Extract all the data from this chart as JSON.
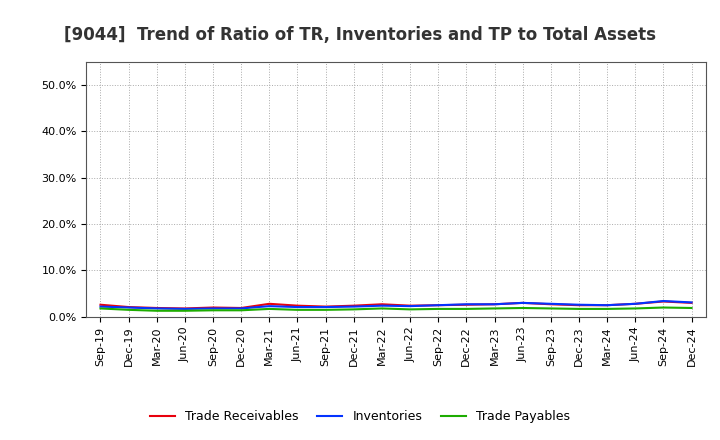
{
  "title": "[9044]  Trend of Ratio of TR, Inventories and TP to Total Assets",
  "x_labels": [
    "Sep-19",
    "Dec-19",
    "Mar-20",
    "Jun-20",
    "Sep-20",
    "Dec-20",
    "Mar-21",
    "Jun-21",
    "Sep-21",
    "Dec-21",
    "Mar-22",
    "Jun-22",
    "Sep-22",
    "Dec-22",
    "Mar-23",
    "Jun-23",
    "Sep-23",
    "Dec-23",
    "Mar-24",
    "Jun-24",
    "Sep-24",
    "Dec-24"
  ],
  "trade_receivables": [
    0.026,
    0.021,
    0.019,
    0.018,
    0.02,
    0.019,
    0.028,
    0.024,
    0.022,
    0.024,
    0.027,
    0.024,
    0.025,
    0.026,
    0.027,
    0.03,
    0.027,
    0.025,
    0.025,
    0.028,
    0.033,
    0.03
  ],
  "inventories": [
    0.022,
    0.02,
    0.018,
    0.017,
    0.018,
    0.018,
    0.023,
    0.021,
    0.021,
    0.022,
    0.024,
    0.023,
    0.025,
    0.027,
    0.027,
    0.03,
    0.028,
    0.026,
    0.025,
    0.028,
    0.034,
    0.031
  ],
  "trade_payables": [
    0.018,
    0.015,
    0.013,
    0.013,
    0.014,
    0.014,
    0.017,
    0.015,
    0.015,
    0.016,
    0.018,
    0.016,
    0.017,
    0.017,
    0.018,
    0.019,
    0.018,
    0.017,
    0.017,
    0.018,
    0.02,
    0.019
  ],
  "tr_color": "#e8000d",
  "inv_color": "#0433ff",
  "tp_color": "#1dac00",
  "ylim": [
    0.0,
    0.55
  ],
  "yticks": [
    0.0,
    0.1,
    0.2,
    0.3,
    0.4,
    0.5
  ],
  "legend_tr": "Trade Receivables",
  "legend_inv": "Inventories",
  "legend_tp": "Trade Payables",
  "background_color": "#ffffff",
  "plot_bg_color": "#ffffff",
  "title_fontsize": 12,
  "tick_fontsize": 8,
  "legend_fontsize": 9,
  "line_width": 1.5
}
